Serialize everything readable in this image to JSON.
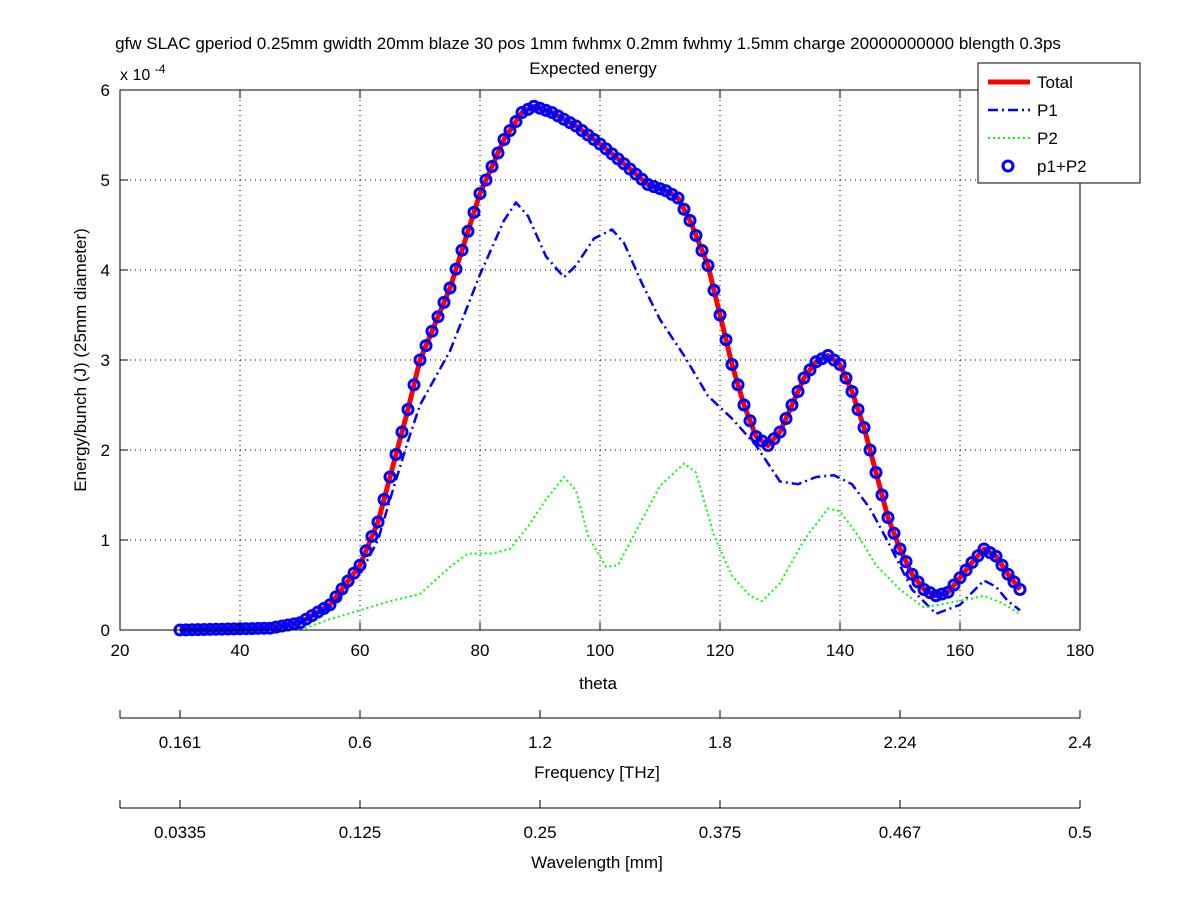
{
  "chart_data": {
    "type": "line",
    "title": "gfw SLAC gperiod 0.25mm gwidth 20mm blaze 30 pos 1mm fwhmx 0.2mm fwhmy 1.5mm charge 20000000000 blength 0.3ps",
    "subtitle": "Expected energy",
    "xlabel": "theta",
    "ylabel": "Energy/bunch (J) (25mm diameter)",
    "y_multiplier_label": "x 10",
    "y_multiplier_exponent": "-4",
    "xlim": [
      20,
      180
    ],
    "ylim": [
      0,
      6
    ],
    "x_ticks": [
      20,
      40,
      60,
      80,
      100,
      120,
      140,
      160,
      180
    ],
    "y_ticks": [
      0,
      1,
      2,
      3,
      4,
      5,
      6
    ],
    "grid": true,
    "legend_position": "top-right",
    "series": [
      {
        "name": "Total",
        "style": "solid",
        "color": "#ff0000",
        "points": [
          [
            30,
            0
          ],
          [
            45,
            0.02
          ],
          [
            50,
            0.08
          ],
          [
            55,
            0.28
          ],
          [
            60,
            0.72
          ],
          [
            63,
            1.2
          ],
          [
            65,
            1.7
          ],
          [
            68,
            2.45
          ],
          [
            70,
            3.0
          ],
          [
            75,
            3.8
          ],
          [
            80,
            4.85
          ],
          [
            84,
            5.45
          ],
          [
            87,
            5.75
          ],
          [
            89,
            5.82
          ],
          [
            92,
            5.75
          ],
          [
            96,
            5.6
          ],
          [
            100,
            5.4
          ],
          [
            104,
            5.18
          ],
          [
            108,
            4.95
          ],
          [
            111,
            4.88
          ],
          [
            113,
            4.8
          ],
          [
            115,
            4.55
          ],
          [
            118,
            4.05
          ],
          [
            120,
            3.5
          ],
          [
            122,
            2.95
          ],
          [
            124,
            2.5
          ],
          [
            126,
            2.15
          ],
          [
            128,
            2.05
          ],
          [
            130,
            2.2
          ],
          [
            132,
            2.5
          ],
          [
            134,
            2.8
          ],
          [
            136,
            2.98
          ],
          [
            138,
            3.05
          ],
          [
            140,
            2.95
          ],
          [
            142,
            2.65
          ],
          [
            144,
            2.25
          ],
          [
            146,
            1.75
          ],
          [
            148,
            1.25
          ],
          [
            150,
            0.9
          ],
          [
            152,
            0.62
          ],
          [
            154,
            0.45
          ],
          [
            156,
            0.38
          ],
          [
            158,
            0.42
          ],
          [
            160,
            0.58
          ],
          [
            162,
            0.75
          ],
          [
            164,
            0.9
          ],
          [
            166,
            0.82
          ],
          [
            168,
            0.62
          ],
          [
            170,
            0.45
          ]
        ]
      },
      {
        "name": "P1",
        "style": "dashdot",
        "color": "#0000ff",
        "points": [
          [
            30,
            0
          ],
          [
            45,
            0.02
          ],
          [
            50,
            0.08
          ],
          [
            55,
            0.25
          ],
          [
            60,
            0.62
          ],
          [
            63,
            1.0
          ],
          [
            65,
            1.45
          ],
          [
            68,
            2.1
          ],
          [
            70,
            2.5
          ],
          [
            75,
            3.1
          ],
          [
            80,
            3.95
          ],
          [
            84,
            4.55
          ],
          [
            86,
            4.75
          ],
          [
            88,
            4.6
          ],
          [
            91,
            4.15
          ],
          [
            94,
            3.92
          ],
          [
            96,
            4.05
          ],
          [
            99,
            4.35
          ],
          [
            102,
            4.45
          ],
          [
            104,
            4.3
          ],
          [
            107,
            3.85
          ],
          [
            110,
            3.45
          ],
          [
            114,
            3.05
          ],
          [
            118,
            2.6
          ],
          [
            122,
            2.35
          ],
          [
            126,
            2.05
          ],
          [
            130,
            1.65
          ],
          [
            133,
            1.62
          ],
          [
            136,
            1.7
          ],
          [
            139,
            1.72
          ],
          [
            142,
            1.62
          ],
          [
            145,
            1.35
          ],
          [
            148,
            0.98
          ],
          [
            152,
            0.45
          ],
          [
            156,
            0.18
          ],
          [
            160,
            0.28
          ],
          [
            164,
            0.55
          ],
          [
            166,
            0.48
          ],
          [
            168,
            0.32
          ],
          [
            170,
            0.22
          ]
        ]
      },
      {
        "name": "P2",
        "style": "dotted",
        "color": "#00ff00",
        "points": [
          [
            50,
            0
          ],
          [
            55,
            0.12
          ],
          [
            60,
            0.22
          ],
          [
            65,
            0.32
          ],
          [
            70,
            0.4
          ],
          [
            75,
            0.7
          ],
          [
            78,
            0.85
          ],
          [
            82,
            0.85
          ],
          [
            85,
            0.9
          ],
          [
            88,
            1.15
          ],
          [
            91,
            1.45
          ],
          [
            94,
            1.7
          ],
          [
            96,
            1.55
          ],
          [
            98,
            1.05
          ],
          [
            101,
            0.7
          ],
          [
            103,
            0.72
          ],
          [
            106,
            1.1
          ],
          [
            110,
            1.6
          ],
          [
            114,
            1.85
          ],
          [
            116,
            1.75
          ],
          [
            119,
            1.05
          ],
          [
            122,
            0.6
          ],
          [
            125,
            0.38
          ],
          [
            127,
            0.32
          ],
          [
            130,
            0.52
          ],
          [
            134,
            1.0
          ],
          [
            138,
            1.35
          ],
          [
            140,
            1.32
          ],
          [
            143,
            1.05
          ],
          [
            146,
            0.72
          ],
          [
            150,
            0.45
          ],
          [
            154,
            0.25
          ],
          [
            158,
            0.3
          ],
          [
            162,
            0.35
          ],
          [
            164,
            0.38
          ],
          [
            167,
            0.3
          ],
          [
            170,
            0.18
          ]
        ]
      },
      {
        "name": "p1+P2",
        "style": "markers",
        "color": "#0000ff",
        "marker": "circle",
        "source_series": "Total",
        "x_start": 30,
        "x_end": 170,
        "x_step": 1
      }
    ],
    "secondary_axes": [
      {
        "label": "Frequency [THz]",
        "ticks": [
          {
            "theta": 20,
            "label": ""
          },
          {
            "theta": 30,
            "label": "0.161"
          },
          {
            "theta": 60,
            "label": "0.6"
          },
          {
            "theta": 90,
            "label": "1.2"
          },
          {
            "theta": 120,
            "label": "1.8"
          },
          {
            "theta": 150,
            "label": "2.24"
          },
          {
            "theta": 180,
            "label": "2.4"
          }
        ]
      },
      {
        "label": "Wavelength [mm]",
        "ticks": [
          {
            "theta": 20,
            "label": ""
          },
          {
            "theta": 30,
            "label": "0.0335"
          },
          {
            "theta": 60,
            "label": "0.125"
          },
          {
            "theta": 90,
            "label": "0.25"
          },
          {
            "theta": 120,
            "label": "0.375"
          },
          {
            "theta": 150,
            "label": "0.467"
          },
          {
            "theta": 180,
            "label": "0.5"
          }
        ]
      }
    ]
  }
}
